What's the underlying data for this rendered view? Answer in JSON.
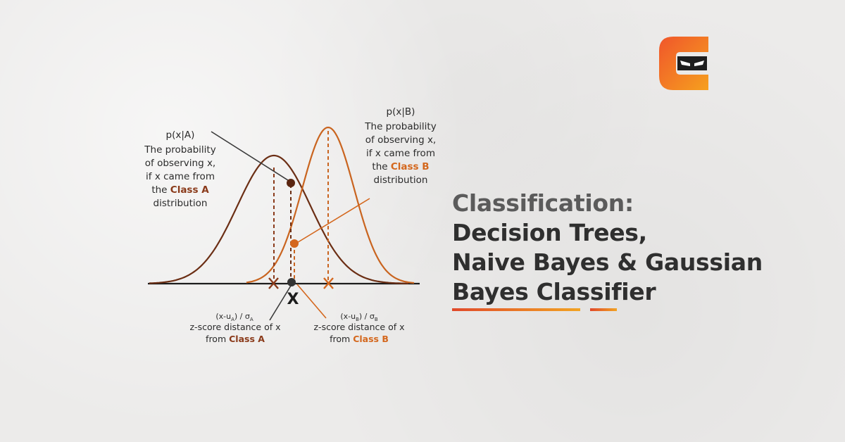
{
  "title": {
    "line1": "Classification:",
    "line2": "Decision Trees,",
    "line3": "Naive Bayes & Gaussian",
    "line4": "Bayes Classifier"
  },
  "colors": {
    "class_a": "#6b2e14",
    "class_b": "#c9641f",
    "accent_orange": "#e8741e",
    "text_dark": "#2f2f2f"
  },
  "label_a": {
    "line1": "p(x|A)",
    "line2": "The probability",
    "line3": "of observing x,",
    "line4": "if x came from",
    "line5_prefix": "the ",
    "line5_class": "Class A",
    "line6": "distribution"
  },
  "label_b": {
    "line1": "p(x|B)",
    "line2": "The probability",
    "line3": "of observing x,",
    "line4": "if x came from",
    "line5_prefix": "the ",
    "line5_class": "Class B",
    "line6": "distribution"
  },
  "x_marker": "X",
  "zscore_a": {
    "formula_open": "(x-u",
    "formula_sub": "A",
    "formula_mid": ") / σ",
    "formula_sigma_sub": "A",
    "line2": "z-score distance of x",
    "line3_prefix": "from ",
    "line3_class": "Class A"
  },
  "zscore_b": {
    "formula_open": "(x-u",
    "formula_sub": "B",
    "formula_mid": ") / σ",
    "formula_sigma_sub": "B",
    "line2": "z-score distance of x",
    "line3_prefix": "from ",
    "line3_class": "Class B"
  },
  "logo_icon": "coding-ninjas-logo-icon"
}
